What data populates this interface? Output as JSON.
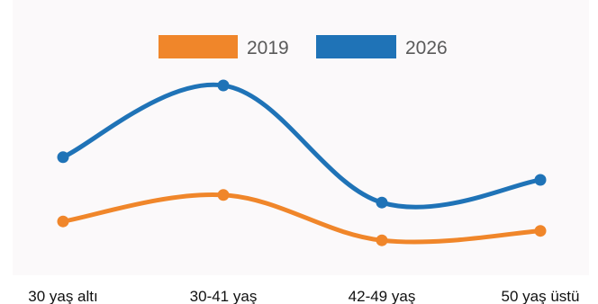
{
  "chart_data": {
    "type": "line",
    "title": "",
    "xlabel": "",
    "ylabel": "",
    "categories": [
      "30 yaş altı",
      "30-41 yaş",
      "42-49 yaş",
      "50 yaş üstü"
    ],
    "ylim": [
      0,
      100
    ],
    "grid": false,
    "legend_position": "top-center",
    "series": [
      {
        "name": "2019",
        "color": "#f0862a",
        "values": [
          28,
          42,
          18,
          23
        ]
      },
      {
        "name": "2026",
        "color": "#1f73b7",
        "values": [
          62,
          100,
          38,
          50
        ]
      }
    ]
  }
}
